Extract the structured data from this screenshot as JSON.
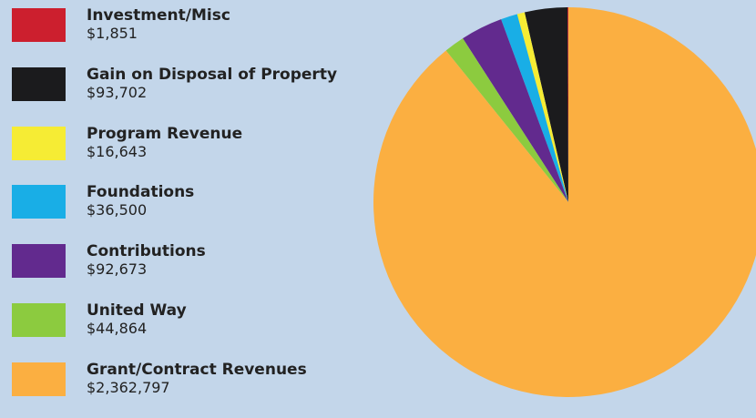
{
  "chart_data": {
    "type": "pie",
    "title": "",
    "slices": [
      {
        "label": "Investment/Misc",
        "value": 1851,
        "value_text": "$1,851",
        "color": "#cc1f2e"
      },
      {
        "label": "Gain on Disposal of Property",
        "value": 93702,
        "value_text": "$93,702",
        "color": "#1b1b1d"
      },
      {
        "label": "Program Revenue",
        "value": 16643,
        "value_text": "$16,643",
        "color": "#f6ec34"
      },
      {
        "label": "Foundations",
        "value": 36500,
        "value_text": "$36,500",
        "color": "#19aee6"
      },
      {
        "label": "Contributions",
        "value": 92673,
        "value_text": "$92,673",
        "color": "#622a8e"
      },
      {
        "label": "United Way",
        "value": 44864,
        "value_text": "$44,864",
        "color": "#8ccb3f"
      },
      {
        "label": "Grant/Contract Revenues",
        "value": 2362797,
        "value_text": "$2,362,797",
        "color": "#fbaf41"
      }
    ],
    "legend_position": "left",
    "start_angle_deg": 0,
    "direction": "counterclockwise"
  }
}
